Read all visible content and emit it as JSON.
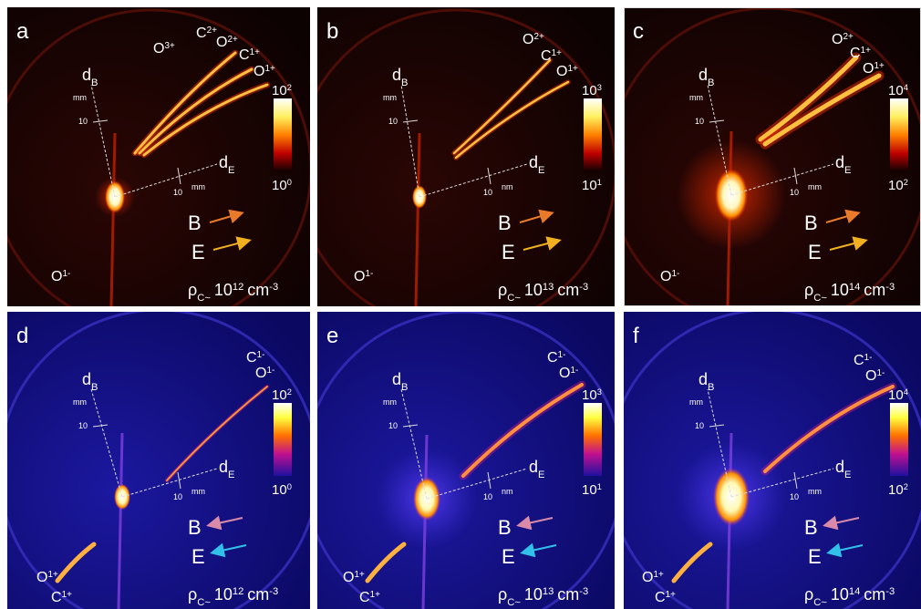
{
  "panels": [
    {
      "label": "a",
      "colormap": "hot",
      "ions": [
        {
          "el": "O",
          "q": "3+"
        },
        {
          "el": "C",
          "q": "2+"
        },
        {
          "el": "O",
          "q": "2+"
        },
        {
          "el": "C",
          "q": "1+"
        },
        {
          "el": "O",
          "q": "1+"
        },
        {
          "el": "O",
          "q": "1-"
        }
      ],
      "axis_d": "d",
      "axis_b": "B",
      "axis_e": "E",
      "b_tick": "10",
      "b_unit": "mm",
      "e_tick": "10",
      "e_unit": "mm",
      "cbar_max": {
        "base": "10",
        "exp": "2"
      },
      "cbar_min": {
        "base": "10",
        "exp": "0"
      },
      "field_b": "B",
      "field_e": "E",
      "density": {
        "symbol": "ρ",
        "sub": "C",
        "approx": "~",
        "base": "10",
        "exp": "12",
        "unit": "cm",
        "unit_exp": "-3"
      }
    },
    {
      "label": "b",
      "colormap": "hot",
      "ions": [
        {
          "el": "O",
          "q": "2+"
        },
        {
          "el": "C",
          "q": "1+"
        },
        {
          "el": "O",
          "q": "1+"
        },
        {
          "el": "O",
          "q": "1-"
        }
      ],
      "axis_d": "d",
      "axis_b": "B",
      "axis_e": "E",
      "b_tick": "10",
      "b_unit": "mm",
      "e_tick": "10",
      "e_unit": "nm",
      "cbar_max": {
        "base": "10",
        "exp": "3"
      },
      "cbar_min": {
        "base": "10",
        "exp": "1"
      },
      "field_b": "B",
      "field_e": "E",
      "density": {
        "symbol": "ρ",
        "sub": "C",
        "approx": "~",
        "base": "10",
        "exp": "13",
        "unit": "cm",
        "unit_exp": "-3"
      }
    },
    {
      "label": "c",
      "colormap": "hot",
      "ions": [
        {
          "el": "O",
          "q": "2+"
        },
        {
          "el": "C",
          "q": "1+"
        },
        {
          "el": "O",
          "q": "1+"
        },
        {
          "el": "O",
          "q": "1-"
        }
      ],
      "axis_d": "d",
      "axis_b": "B",
      "axis_e": "E",
      "b_tick": "10",
      "b_unit": "mm",
      "e_tick": "10",
      "e_unit": "mm",
      "cbar_max": {
        "base": "10",
        "exp": "4"
      },
      "cbar_min": {
        "base": "10",
        "exp": "2"
      },
      "field_b": "B",
      "field_e": "E",
      "density": {
        "symbol": "ρ",
        "sub": "C",
        "approx": "~",
        "base": "10",
        "exp": "14",
        "unit": "cm",
        "unit_exp": "-3"
      }
    },
    {
      "label": "d",
      "colormap": "gnuplot",
      "ions": [
        {
          "el": "C",
          "q": "1-"
        },
        {
          "el": "O",
          "q": "1-"
        },
        {
          "el": "O",
          "q": "1+"
        },
        {
          "el": "C",
          "q": "1+"
        }
      ],
      "axis_d": "d",
      "axis_b": "B",
      "axis_e": "E",
      "b_tick": "10",
      "b_unit": "mm",
      "e_tick": "10",
      "e_unit": "mm",
      "cbar_max": {
        "base": "10",
        "exp": "2"
      },
      "cbar_min": {
        "base": "10",
        "exp": "0"
      },
      "field_b": "B",
      "field_e": "E",
      "density": {
        "symbol": "ρ",
        "sub": "C",
        "approx": "~",
        "base": "10",
        "exp": "12",
        "unit": "cm",
        "unit_exp": "-3"
      }
    },
    {
      "label": "e",
      "colormap": "gnuplot",
      "ions": [
        {
          "el": "C",
          "q": "1-"
        },
        {
          "el": "O",
          "q": "1-"
        },
        {
          "el": "O",
          "q": "1+"
        },
        {
          "el": "C",
          "q": "1+"
        }
      ],
      "axis_d": "d",
      "axis_b": "B",
      "axis_e": "E",
      "b_tick": "10",
      "b_unit": "mm",
      "e_tick": "10",
      "e_unit": "nm",
      "cbar_max": {
        "base": "10",
        "exp": "3"
      },
      "cbar_min": {
        "base": "10",
        "exp": "1"
      },
      "field_b": "B",
      "field_e": "E",
      "density": {
        "symbol": "ρ",
        "sub": "C",
        "approx": "~",
        "base": "10",
        "exp": "13",
        "unit": "cm",
        "unit_exp": "-3"
      }
    },
    {
      "label": "f",
      "colormap": "gnuplot",
      "ions": [
        {
          "el": "C",
          "q": "1-"
        },
        {
          "el": "O",
          "q": "1-"
        },
        {
          "el": "O",
          "q": "1+"
        },
        {
          "el": "C",
          "q": "1+"
        }
      ],
      "axis_d": "d",
      "axis_b": "B",
      "axis_e": "E",
      "b_tick": "10",
      "b_unit": "mm",
      "e_tick": "10",
      "e_unit": "mm",
      "cbar_max": {
        "base": "10",
        "exp": "4"
      },
      "cbar_min": {
        "base": "10",
        "exp": "2"
      },
      "field_b": "B",
      "field_e": "E",
      "density": {
        "symbol": "ρ",
        "sub": "C",
        "approx": "~",
        "base": "10",
        "exp": "14",
        "unit": "cm",
        "unit_exp": "-3"
      }
    }
  ]
}
